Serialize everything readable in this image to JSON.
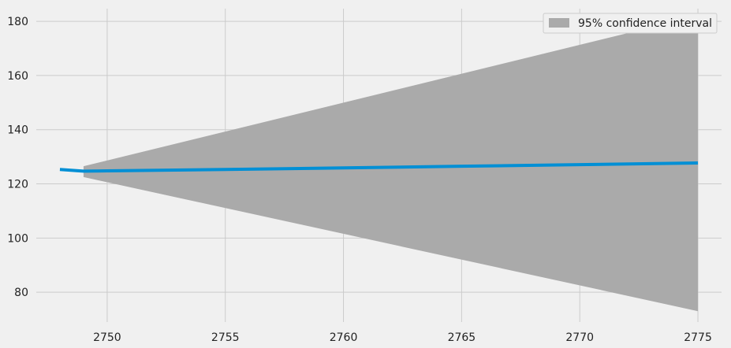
{
  "chart_data": {
    "type": "line",
    "title": "",
    "xlabel": "",
    "ylabel": "",
    "xlim": [
      2747,
      2776.3
    ],
    "ylim": [
      69,
      187
    ],
    "x_ticks": [
      2750,
      2755,
      2760,
      2765,
      2770,
      2775
    ],
    "y_ticks": [
      80,
      100,
      120,
      140,
      160,
      180
    ],
    "grid": true,
    "legend_position": "top-right",
    "series": [
      {
        "name": "",
        "color": "#008fd5",
        "x": [
          2748,
          2749,
          2750,
          2755,
          2760,
          2765,
          2770,
          2775
        ],
        "y": [
          125.3,
          124.7,
          124.8,
          125.3,
          125.9,
          126.5,
          127.1,
          127.7
        ]
      }
    ],
    "bands": [
      {
        "name": "95% confidence interval",
        "color": "#aaaaaa",
        "x": [
          2749,
          2775
        ],
        "lower": [
          122.5,
          73
        ],
        "upper": [
          126.5,
          182
        ]
      }
    ]
  }
}
